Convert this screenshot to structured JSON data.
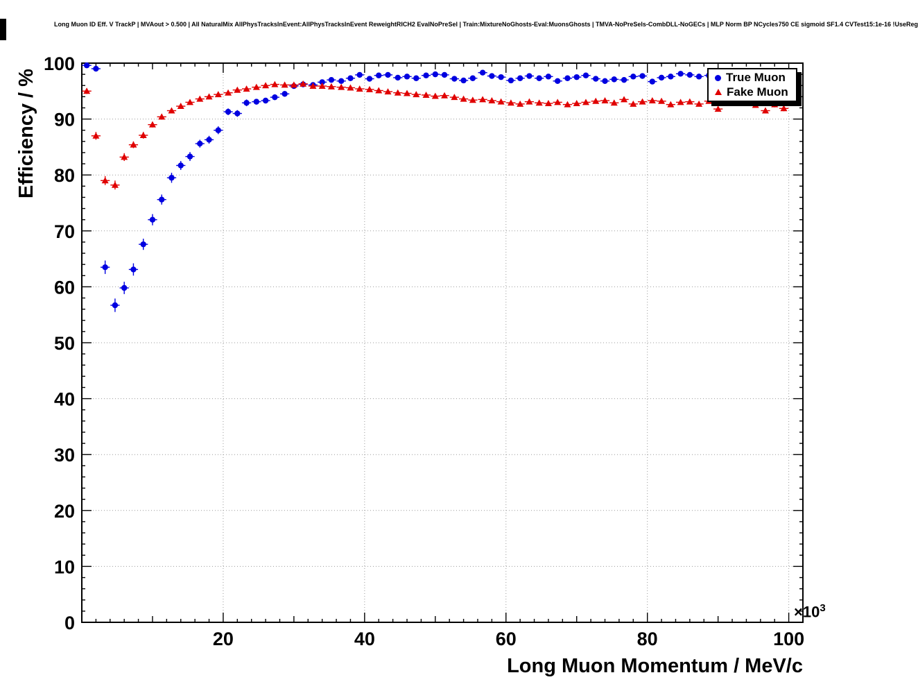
{
  "chart_data": {
    "type": "scatter",
    "title": "Long Muon ID Eff. V TrackP | MVAout > 0.500 | All NaturalMix AllPhysTracksInEvent:AllPhysTracksInEvent ReweightRICH2 EvalNoPreSel | Train:MixtureNoGhosts-Eval:MuonsGhosts | TMVA-NoPreSels-CombDLL-NoGECs | MLP Norm BP NCycles750 CE sigmoid SF1.4 CVTest15:1e-16 !UseReg",
    "xlabel": "Long Muon Momentum / MeV/c",
    "ylabel": "Efficiency / %",
    "x_scale_prefix": "×10",
    "x_scale_exponent": "3",
    "xlim": [
      0,
      102
    ],
    "ylim": [
      0,
      100
    ],
    "x_major_ticks": [
      20,
      40,
      60,
      80,
      100
    ],
    "y_major_ticks": [
      0,
      10,
      20,
      30,
      40,
      50,
      60,
      70,
      80,
      90,
      100
    ],
    "grid": true,
    "legend": {
      "position": "top-right",
      "entries": [
        {
          "label": "True Muon",
          "color": "#0000e0",
          "marker": "circle"
        },
        {
          "label": "Fake Muon",
          "color": "#e00000",
          "marker": "triangle"
        }
      ]
    },
    "series": [
      {
        "name": "True Muon",
        "color": "#0000e0",
        "marker": "circle",
        "points": [
          [
            0.7,
            99.6,
            0.3
          ],
          [
            2.0,
            99.0,
            0.4
          ],
          [
            3.3,
            63.5,
            1.2
          ],
          [
            4.7,
            56.7,
            1.2
          ],
          [
            6.0,
            59.8,
            1.1
          ],
          [
            7.3,
            63.1,
            1.1
          ],
          [
            8.7,
            67.6,
            1.0
          ],
          [
            10.0,
            72.0,
            1.0
          ],
          [
            11.3,
            75.6,
            0.9
          ],
          [
            12.7,
            79.5,
            0.9
          ],
          [
            14.0,
            81.7,
            0.8
          ],
          [
            15.3,
            83.3,
            0.8
          ],
          [
            16.7,
            85.6,
            0.7
          ],
          [
            18.0,
            86.3,
            0.7
          ],
          [
            19.3,
            88.0,
            0.7
          ],
          [
            20.7,
            91.3,
            0.6
          ],
          [
            22.0,
            91.0,
            0.6
          ],
          [
            23.3,
            92.9,
            0.6
          ],
          [
            24.7,
            93.1,
            0.5
          ],
          [
            26.0,
            93.3,
            0.5
          ],
          [
            27.3,
            93.9,
            0.5
          ],
          [
            28.7,
            94.5,
            0.5
          ],
          [
            30.0,
            95.9,
            0.4
          ],
          [
            31.3,
            96.2,
            0.4
          ],
          [
            32.7,
            96.1,
            0.4
          ],
          [
            34.0,
            96.6,
            0.4
          ],
          [
            35.3,
            97.0,
            0.4
          ],
          [
            36.7,
            96.8,
            0.4
          ],
          [
            38.0,
            97.3,
            0.4
          ],
          [
            39.3,
            97.9,
            0.3
          ],
          [
            40.7,
            97.2,
            0.3
          ],
          [
            42.0,
            97.8,
            0.3
          ],
          [
            43.3,
            97.9,
            0.3
          ],
          [
            44.7,
            97.4,
            0.3
          ],
          [
            46.0,
            97.6,
            0.3
          ],
          [
            47.3,
            97.3,
            0.3
          ],
          [
            48.7,
            97.8,
            0.3
          ],
          [
            50.0,
            98.0,
            0.3
          ],
          [
            51.3,
            97.9,
            0.3
          ],
          [
            52.7,
            97.2,
            0.3
          ],
          [
            54.0,
            96.9,
            0.4
          ],
          [
            55.3,
            97.3,
            0.4
          ],
          [
            56.7,
            98.3,
            0.3
          ],
          [
            58.0,
            97.7,
            0.3
          ],
          [
            59.3,
            97.5,
            0.3
          ],
          [
            60.7,
            96.9,
            0.4
          ],
          [
            62.0,
            97.3,
            0.4
          ],
          [
            63.3,
            97.7,
            0.3
          ],
          [
            64.7,
            97.3,
            0.4
          ],
          [
            66.0,
            97.6,
            0.4
          ],
          [
            67.3,
            96.8,
            0.4
          ],
          [
            68.7,
            97.3,
            0.4
          ],
          [
            70.0,
            97.5,
            0.4
          ],
          [
            71.3,
            97.8,
            0.4
          ],
          [
            72.7,
            97.2,
            0.4
          ],
          [
            74.0,
            96.8,
            0.5
          ],
          [
            75.3,
            97.1,
            0.5
          ],
          [
            76.7,
            97.0,
            0.5
          ],
          [
            78.0,
            97.6,
            0.4
          ],
          [
            79.3,
            97.7,
            0.4
          ],
          [
            80.7,
            96.7,
            0.5
          ],
          [
            82.0,
            97.4,
            0.5
          ],
          [
            83.3,
            97.6,
            0.5
          ],
          [
            84.7,
            98.1,
            0.4
          ],
          [
            86.0,
            97.9,
            0.5
          ],
          [
            87.3,
            97.6,
            0.5
          ],
          [
            88.7,
            97.8,
            0.5
          ]
        ]
      },
      {
        "name": "Fake Muon",
        "color": "#e00000",
        "marker": "triangle",
        "points": [
          [
            0.7,
            95.0,
            0.5
          ],
          [
            2.0,
            87.0,
            0.7
          ],
          [
            3.3,
            79.0,
            0.8
          ],
          [
            4.7,
            78.2,
            0.8
          ],
          [
            6.0,
            83.2,
            0.7
          ],
          [
            7.3,
            85.4,
            0.6
          ],
          [
            8.7,
            87.1,
            0.6
          ],
          [
            10.0,
            89.0,
            0.5
          ],
          [
            11.3,
            90.4,
            0.5
          ],
          [
            12.7,
            91.5,
            0.4
          ],
          [
            14.0,
            92.3,
            0.4
          ],
          [
            15.3,
            93.0,
            0.4
          ],
          [
            16.7,
            93.6,
            0.3
          ],
          [
            18.0,
            94.0,
            0.3
          ],
          [
            19.3,
            94.4,
            0.3
          ],
          [
            20.7,
            94.7,
            0.3
          ],
          [
            22.0,
            95.2,
            0.3
          ],
          [
            23.3,
            95.4,
            0.3
          ],
          [
            24.7,
            95.7,
            0.2
          ],
          [
            26.0,
            96.0,
            0.2
          ],
          [
            27.3,
            96.2,
            0.2
          ],
          [
            28.7,
            96.1,
            0.2
          ],
          [
            30.0,
            96.1,
            0.2
          ],
          [
            31.3,
            96.3,
            0.2
          ],
          [
            32.7,
            95.9,
            0.2
          ],
          [
            34.0,
            95.9,
            0.2
          ],
          [
            35.3,
            95.8,
            0.2
          ],
          [
            36.7,
            95.7,
            0.2
          ],
          [
            38.0,
            95.6,
            0.2
          ],
          [
            39.3,
            95.4,
            0.2
          ],
          [
            40.7,
            95.3,
            0.2
          ],
          [
            42.0,
            95.1,
            0.2
          ],
          [
            43.3,
            94.9,
            0.2
          ],
          [
            44.7,
            94.7,
            0.2
          ],
          [
            46.0,
            94.6,
            0.2
          ],
          [
            47.3,
            94.4,
            0.2
          ],
          [
            48.7,
            94.3,
            0.2
          ],
          [
            50.0,
            94.1,
            0.2
          ],
          [
            51.3,
            94.2,
            0.2
          ],
          [
            52.7,
            93.9,
            0.2
          ],
          [
            54.0,
            93.6,
            0.2
          ],
          [
            55.3,
            93.4,
            0.2
          ],
          [
            56.7,
            93.5,
            0.2
          ],
          [
            58.0,
            93.3,
            0.2
          ],
          [
            59.3,
            93.1,
            0.2
          ],
          [
            60.7,
            92.9,
            0.2
          ],
          [
            62.0,
            92.7,
            0.2
          ],
          [
            63.3,
            93.1,
            0.3
          ],
          [
            64.7,
            92.9,
            0.3
          ],
          [
            66.0,
            92.8,
            0.3
          ],
          [
            67.3,
            93.0,
            0.3
          ],
          [
            68.7,
            92.6,
            0.3
          ],
          [
            70.0,
            92.8,
            0.3
          ],
          [
            71.3,
            93.0,
            0.3
          ],
          [
            72.7,
            93.2,
            0.3
          ],
          [
            74.0,
            93.3,
            0.3
          ],
          [
            75.3,
            92.9,
            0.3
          ],
          [
            76.7,
            93.5,
            0.3
          ],
          [
            78.0,
            92.7,
            0.3
          ],
          [
            79.3,
            93.1,
            0.3
          ],
          [
            80.7,
            93.3,
            0.3
          ],
          [
            82.0,
            93.2,
            0.3
          ],
          [
            83.3,
            92.6,
            0.4
          ],
          [
            84.7,
            93.0,
            0.4
          ],
          [
            86.0,
            93.1,
            0.4
          ],
          [
            87.3,
            92.7,
            0.4
          ],
          [
            88.7,
            93.2,
            0.4
          ],
          [
            90.0,
            91.8,
            0.4
          ],
          [
            91.3,
            93.0,
            0.4
          ],
          [
            92.7,
            92.8,
            0.4
          ],
          [
            94.0,
            93.1,
            0.4
          ],
          [
            95.3,
            92.5,
            0.5
          ],
          [
            96.7,
            91.5,
            0.5
          ],
          [
            98.0,
            92.6,
            0.5
          ],
          [
            99.3,
            91.9,
            0.5
          ]
        ]
      }
    ]
  }
}
